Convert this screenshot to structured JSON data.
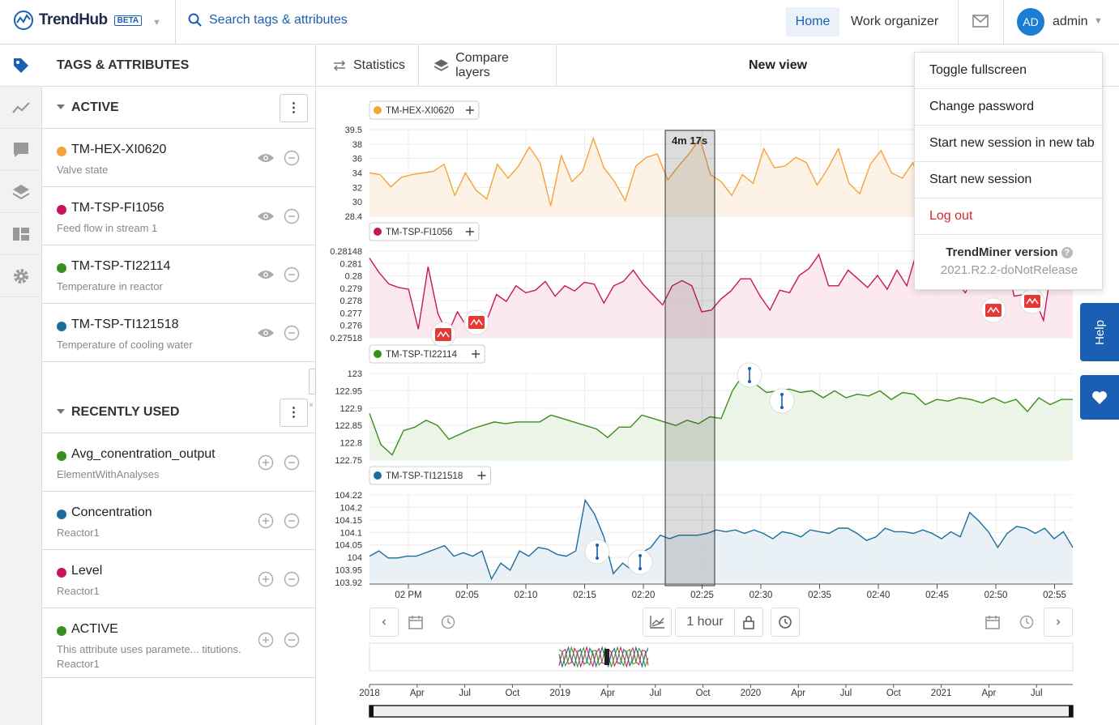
{
  "app": {
    "name": "TrendHub",
    "badge": "BETA"
  },
  "search": {
    "placeholder": "Search tags & attributes"
  },
  "nav": {
    "home": "Home",
    "work": "Work organizer"
  },
  "user": {
    "initials": "AD",
    "name": "admin"
  },
  "panel": {
    "title": "TAGS & ATTRIBUTES",
    "active_title": "ACTIVE",
    "recent_title": "RECENTLY USED",
    "active": [
      {
        "name": "TM-HEX-XI0620",
        "desc": "Valve state",
        "color": "#f5a23a"
      },
      {
        "name": "TM-TSP-FI1056",
        "desc": "Feed flow in stream 1",
        "color": "#c8165e"
      },
      {
        "name": "TM-TSP-TI22114",
        "desc": "Temperature in reactor",
        "color": "#3a8f1c"
      },
      {
        "name": "TM-TSP-TI121518",
        "desc": "Temperature of cooling water",
        "color": "#1b6e9c"
      }
    ],
    "recent": [
      {
        "name": "Avg_conentration_output",
        "desc": "ElementWithAnalyses",
        "color": "#3a8f1c"
      },
      {
        "name": "Concentration",
        "desc": "Reactor1",
        "color": "#1b6e9c"
      },
      {
        "name": "Level",
        "desc": "Reactor1",
        "color": "#c8165e"
      },
      {
        "name": "ACTIVE",
        "desc": "This attribute uses paramete... titutions.",
        "desc2": "Reactor1",
        "color": "#3a8f1c"
      }
    ]
  },
  "toolbar": {
    "statistics": "Statistics",
    "compare": "Compare layers",
    "view_title": "New view"
  },
  "menu": {
    "items": [
      "Toggle fullscreen",
      "Change password",
      "Start new session in new tab",
      "Start new session",
      "Log out"
    ],
    "version_title": "TrendMiner version",
    "version": "2021.R2.2-doNotRelease"
  },
  "side": {
    "help": "Help"
  },
  "chart": {
    "selection_label": "4m 17s",
    "period": "1 hour",
    "x_ticks": [
      "02 PM",
      "02:05",
      "02:10",
      "02:15",
      "02:20",
      "02:25",
      "02:30",
      "02:35",
      "02:40",
      "02:45",
      "02:50",
      "02:55"
    ],
    "overview_ticks": [
      "2018",
      "Apr",
      "Jul",
      "Oct",
      "2019",
      "Apr",
      "Jul",
      "Oct",
      "2020",
      "Apr",
      "Jul",
      "Oct",
      "2021",
      "Apr",
      "Jul"
    ],
    "lanes": [
      {
        "tag": "TM-HEX-XI0620",
        "color": "#f5a23a",
        "fill": "#fdf0e2",
        "ticks": [
          "39.5",
          "38",
          "36",
          "34",
          "32",
          "30",
          "28.4"
        ]
      },
      {
        "tag": "TM-TSP-FI1056",
        "color": "#c8165e",
        "fill": "#fbe5ec",
        "ticks": [
          "0.28148",
          "0.281",
          "0.28",
          "0.279",
          "0.278",
          "0.277",
          "0.276",
          "0.27518"
        ]
      },
      {
        "tag": "TM-TSP-TI22114",
        "color": "#3a8f1c",
        "fill": "#e9f3e4",
        "ticks": [
          "123",
          "122.95",
          "122.9",
          "122.85",
          "122.8",
          "122.75"
        ]
      },
      {
        "tag": "TM-TSP-TI121518",
        "color": "#1b6e9c",
        "fill": "#e6eef5",
        "ticks": [
          "104.22",
          "104.2",
          "104.15",
          "104.1",
          "104.05",
          "104",
          "103.95",
          "103.92"
        ]
      }
    ]
  },
  "chart_data": {
    "type": "line",
    "x": [
      "02 PM",
      "02:05",
      "02:10",
      "02:15",
      "02:20",
      "02:25",
      "02:30",
      "02:35",
      "02:40",
      "02:45",
      "02:50",
      "02:55"
    ],
    "series": [
      {
        "name": "TM-HEX-XI0620",
        "ylim": [
          28.4,
          39.5
        ]
      },
      {
        "name": "TM-TSP-FI1056",
        "ylim": [
          0.27518,
          0.28148
        ]
      },
      {
        "name": "TM-TSP-TI22114",
        "ylim": [
          122.75,
          123
        ]
      },
      {
        "name": "TM-TSP-TI121518",
        "ylim": [
          103.92,
          104.22
        ]
      }
    ]
  }
}
